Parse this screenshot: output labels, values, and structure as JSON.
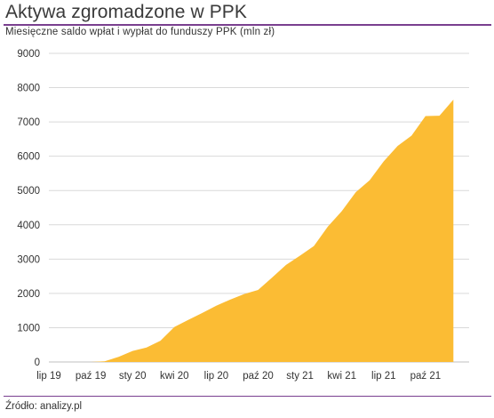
{
  "header": {
    "title": "Aktywa zgromadzone w PPK",
    "subtitle": "Miesięczne saldo wpłat i wypłat do funduszy PPK  (mln zł)"
  },
  "footer": {
    "source": "Źródło: analizy.pl"
  },
  "colors": {
    "area": "#fbbc34",
    "rule": "#7a3f8f",
    "grid": "#d9d9d9",
    "text": "#333333"
  },
  "chart_data": {
    "type": "area",
    "title": "",
    "xlabel": "",
    "ylabel": "",
    "ylim": [
      0,
      9000
    ],
    "yticks": [
      0,
      1000,
      2000,
      3000,
      4000,
      5000,
      6000,
      7000,
      8000,
      9000
    ],
    "grid": true,
    "xtick_labels": [
      "lip 19",
      "paź 19",
      "sty 20",
      "kwi 20",
      "lip 20",
      "paź 20",
      "sty 21",
      "kwi 21",
      "lip 21",
      "paź 21"
    ],
    "x": [
      "2019-07",
      "2019-08",
      "2019-09",
      "2019-10",
      "2019-11",
      "2019-12",
      "2020-01",
      "2020-02",
      "2020-03",
      "2020-04",
      "2020-05",
      "2020-06",
      "2020-07",
      "2020-08",
      "2020-09",
      "2020-10",
      "2020-11",
      "2020-12",
      "2021-01",
      "2021-02",
      "2021-03",
      "2021-04",
      "2021-05",
      "2021-06",
      "2021-07",
      "2021-08",
      "2021-09",
      "2021-10",
      "2021-11",
      "2021-12"
    ],
    "values": [
      0,
      0,
      0,
      0,
      20,
      150,
      320,
      420,
      620,
      1020,
      1230,
      1430,
      1640,
      1820,
      1980,
      2100,
      2460,
      2830,
      3100,
      3380,
      3950,
      4400,
      4950,
      5300,
      5850,
      6300,
      6600,
      7170,
      7180,
      7650
    ]
  }
}
